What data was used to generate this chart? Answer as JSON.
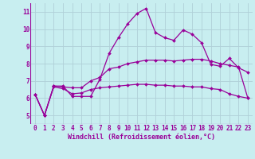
{
  "xlabel": "Windchill (Refroidissement éolien,°C)",
  "bg_color": "#c8eef0",
  "line_color": "#990099",
  "grid_color": "#b0d0d8",
  "xlim": [
    -0.5,
    23.5
  ],
  "ylim": [
    4.5,
    11.5
  ],
  "xticks": [
    0,
    1,
    2,
    3,
    4,
    5,
    6,
    7,
    8,
    9,
    10,
    11,
    12,
    13,
    14,
    15,
    16,
    17,
    18,
    19,
    20,
    21,
    22,
    23
  ],
  "yticks": [
    5,
    6,
    7,
    8,
    9,
    10,
    11
  ],
  "series1": [
    6.2,
    5.0,
    6.7,
    6.7,
    6.1,
    6.1,
    6.1,
    7.1,
    8.6,
    9.5,
    10.3,
    10.9,
    11.2,
    9.8,
    9.5,
    9.35,
    9.95,
    9.7,
    9.2,
    7.95,
    7.85,
    8.3,
    7.75,
    7.5
  ],
  "series2": [
    6.2,
    5.0,
    6.7,
    6.65,
    6.6,
    6.6,
    7.0,
    7.2,
    7.7,
    7.8,
    8.0,
    8.1,
    8.2,
    8.2,
    8.2,
    8.15,
    8.2,
    8.25,
    8.25,
    8.15,
    8.0,
    7.9,
    7.8,
    6.0
  ],
  "series3": [
    6.2,
    5.0,
    6.65,
    6.55,
    6.25,
    6.3,
    6.5,
    6.6,
    6.65,
    6.7,
    6.75,
    6.8,
    6.8,
    6.75,
    6.75,
    6.7,
    6.7,
    6.65,
    6.65,
    6.55,
    6.5,
    6.25,
    6.1,
    6.0
  ],
  "tick_fontsize": 5.5,
  "xlabel_fontsize": 6.0,
  "lw": 0.9,
  "marker": "D",
  "markersize": 2.0
}
